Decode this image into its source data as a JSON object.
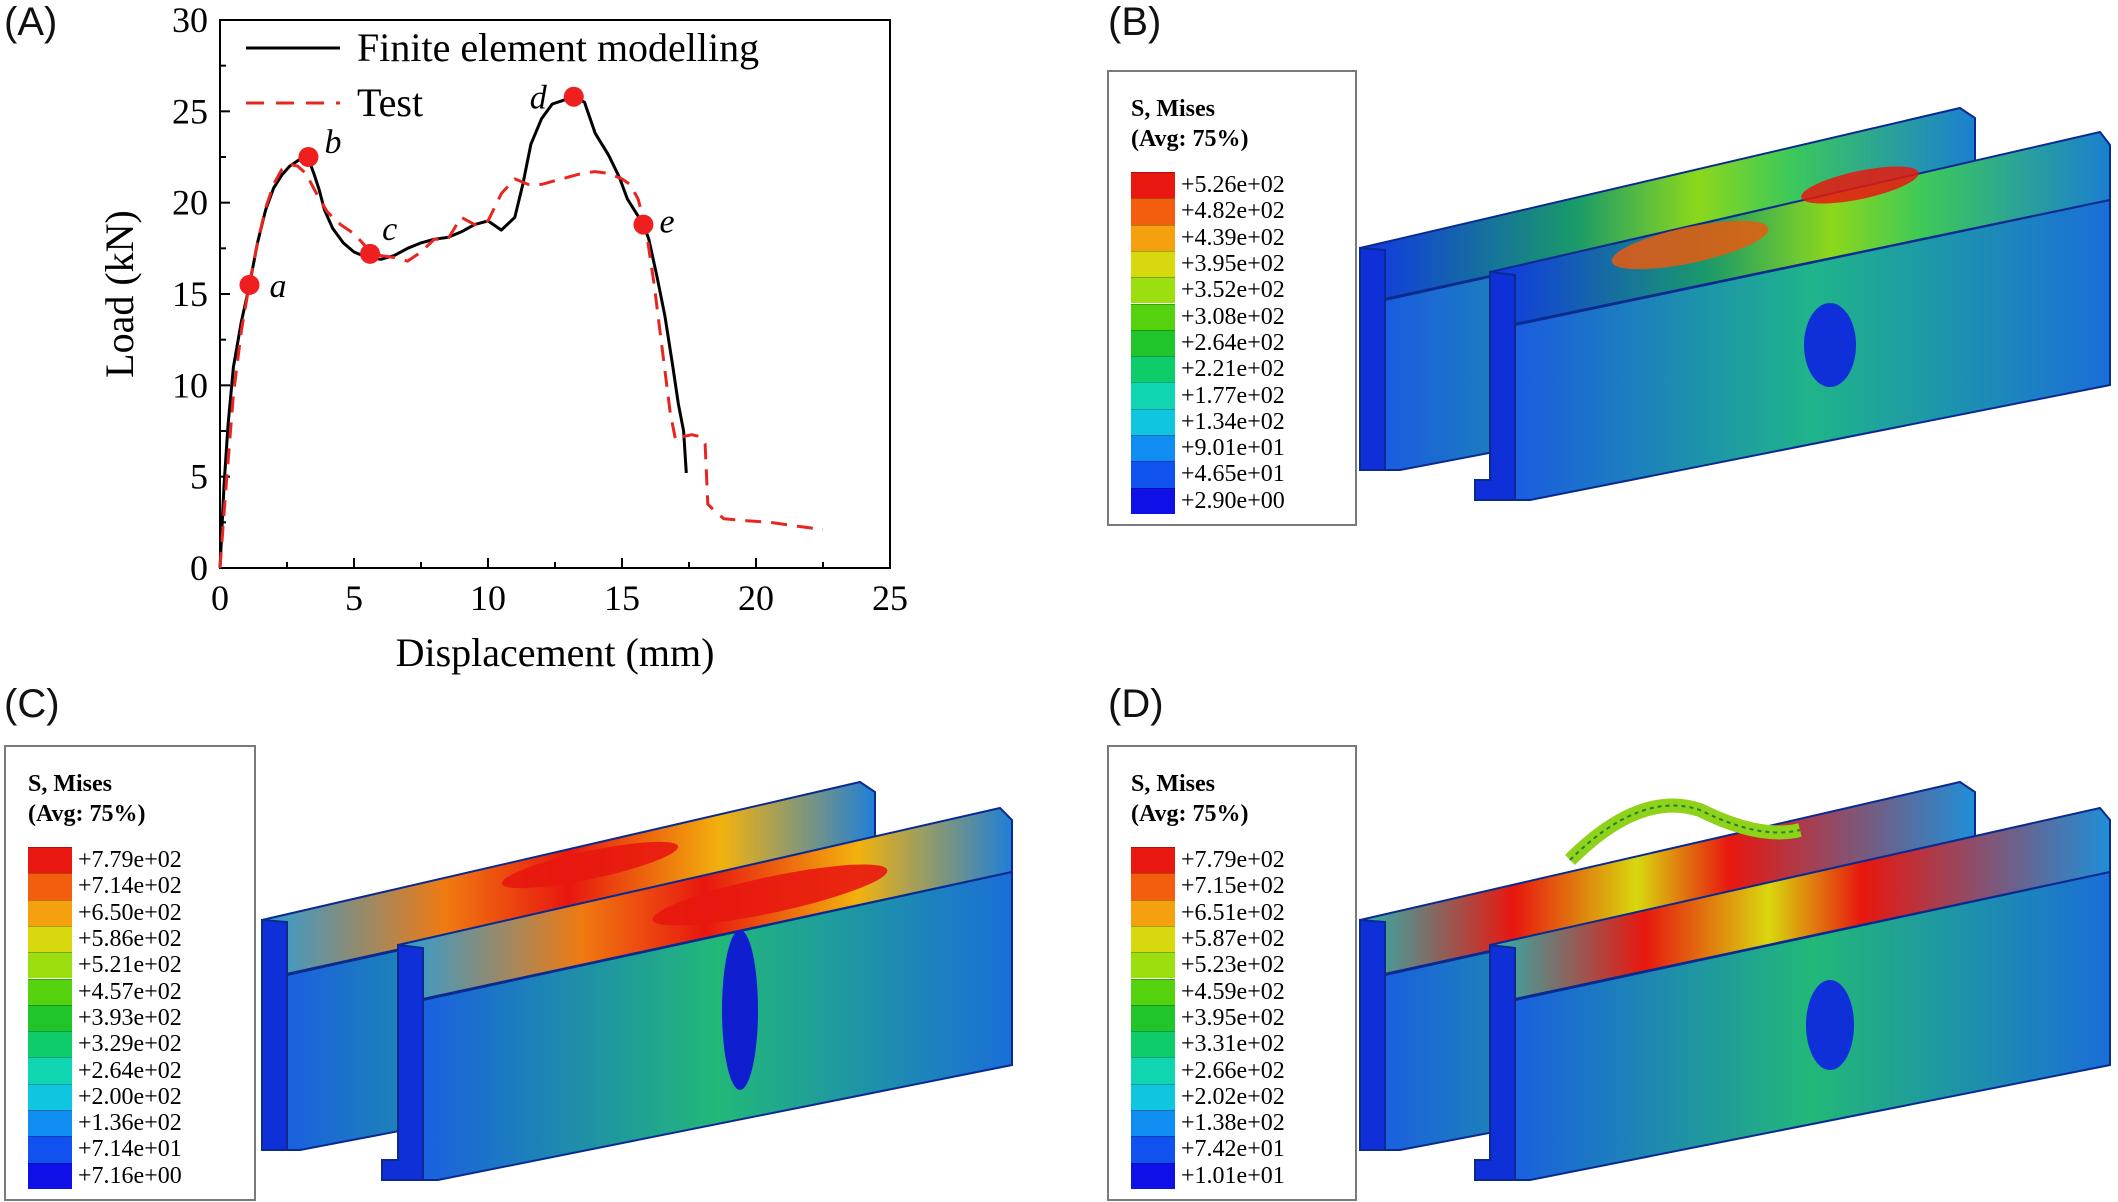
{
  "panels": {
    "a": "(A)",
    "b": "(B)",
    "c": "(C)",
    "d": "(D)"
  },
  "chart_data": {
    "type": "line",
    "title": "",
    "xlabel": "Displacement (mm)",
    "ylabel": "Load (kN)",
    "xlim": [
      0,
      25
    ],
    "ylim": [
      0,
      30
    ],
    "xticks": [
      0,
      5,
      10,
      15,
      20,
      25
    ],
    "yticks": [
      0,
      5,
      10,
      15,
      20,
      25,
      30
    ],
    "legend_position": "top",
    "series": [
      {
        "name": "Finite element modelling",
        "style": "solid",
        "color": "#000000",
        "x": [
          0,
          0.15,
          0.3,
          0.5,
          0.8,
          1.1,
          1.4,
          1.7,
          2.0,
          2.3,
          2.6,
          2.9,
          3.1,
          3.3,
          3.5,
          3.7,
          3.9,
          4.2,
          4.6,
          5.0,
          5.5,
          6.0,
          6.5,
          7.0,
          7.5,
          8.0,
          8.5,
          9.0,
          9.5,
          10.0,
          10.5,
          11.0,
          11.3,
          11.6,
          12.0,
          12.4,
          12.8,
          13.2,
          13.6,
          14.0,
          14.5,
          14.9,
          15.2,
          15.5,
          15.8,
          16.0,
          16.3,
          16.6,
          16.9,
          17.1,
          17.3,
          17.4
        ],
        "y": [
          0,
          4.5,
          7.8,
          11.0,
          13.5,
          15.5,
          17.8,
          19.6,
          20.8,
          21.5,
          22.0,
          22.3,
          22.5,
          22.4,
          21.6,
          20.7,
          19.6,
          18.6,
          17.8,
          17.3,
          17.0,
          16.9,
          17.1,
          17.5,
          17.8,
          18.0,
          18.1,
          18.4,
          18.8,
          19.0,
          18.5,
          19.2,
          21.0,
          23.2,
          24.6,
          25.4,
          25.6,
          25.8,
          25.5,
          23.8,
          22.6,
          21.4,
          20.2,
          19.5,
          18.8,
          18.0,
          16.0,
          13.8,
          11.0,
          9.0,
          7.5,
          5.2
        ]
      },
      {
        "name": "Test",
        "style": "dashed",
        "color": "#e8251f",
        "x": [
          0,
          0.2,
          0.5,
          0.8,
          1.1,
          1.4,
          1.7,
          2.0,
          2.3,
          2.6,
          2.9,
          3.2,
          3.6,
          4.0,
          4.5,
          5.0,
          5.5,
          6.0,
          6.5,
          7.0,
          7.5,
          8.0,
          8.5,
          9.0,
          9.5,
          10.0,
          10.5,
          11.0,
          11.5,
          12.0,
          12.5,
          13.0,
          13.5,
          14.0,
          14.5,
          15.0,
          15.3,
          15.6,
          15.9,
          16.2,
          16.5,
          16.8,
          17.0,
          17.3,
          17.6,
          17.9,
          18.1,
          18.2,
          18.4,
          18.8,
          19.5,
          20.5,
          21.5,
          22.5
        ],
        "y": [
          0,
          4.0,
          9.5,
          13.0,
          15.6,
          17.8,
          19.7,
          21.0,
          21.8,
          22.1,
          22.0,
          21.6,
          20.5,
          19.5,
          18.8,
          18.3,
          17.5,
          17.1,
          17.0,
          16.8,
          17.3,
          18.0,
          18.0,
          19.2,
          18.8,
          19.0,
          20.5,
          21.3,
          21.0,
          21.0,
          21.2,
          21.4,
          21.6,
          21.7,
          21.6,
          21.3,
          21.0,
          20.2,
          18.5,
          15.5,
          12.0,
          8.5,
          7.0,
          7.2,
          7.3,
          7.2,
          6.8,
          3.5,
          3.2,
          2.7,
          2.6,
          2.5,
          2.3,
          2.1
        ]
      }
    ],
    "annotations": [
      {
        "label": "a",
        "x": 1.1,
        "y": 15.5
      },
      {
        "label": "b",
        "x": 3.3,
        "y": 22.5
      },
      {
        "label": "c",
        "x": 5.6,
        "y": 17.2
      },
      {
        "label": "d",
        "x": 13.2,
        "y": 25.8
      },
      {
        "label": "e",
        "x": 15.8,
        "y": 18.8
      }
    ]
  },
  "contours": [
    {
      "title_line1": "S, Mises",
      "title_line2": "(Avg: 75%)",
      "values": [
        "+5.26e+02",
        "+4.82e+02",
        "+4.39e+02",
        "+3.95e+02",
        "+3.52e+02",
        "+3.08e+02",
        "+2.64e+02",
        "+2.21e+02",
        "+1.77e+02",
        "+1.34e+02",
        "+9.01e+01",
        "+4.65e+01",
        "+2.90e+00"
      ]
    },
    {
      "title_line1": "S, Mises",
      "title_line2": "(Avg: 75%)",
      "values": [
        "+7.79e+02",
        "+7.14e+02",
        "+6.50e+02",
        "+5.86e+02",
        "+5.21e+02",
        "+4.57e+02",
        "+3.93e+02",
        "+3.29e+02",
        "+2.64e+02",
        "+2.00e+02",
        "+1.36e+02",
        "+7.14e+01",
        "+7.16e+00"
      ]
    },
    {
      "title_line1": "S, Mises",
      "title_line2": "(Avg: 75%)",
      "values": [
        "+7.79e+02",
        "+7.15e+02",
        "+6.51e+02",
        "+5.87e+02",
        "+5.23e+02",
        "+4.59e+02",
        "+3.95e+02",
        "+3.31e+02",
        "+2.66e+02",
        "+2.02e+02",
        "+1.38e+02",
        "+7.42e+01",
        "+1.01e+01"
      ]
    }
  ],
  "colors": {
    "scale": [
      "#e8170f",
      "#f25e0e",
      "#f5a00e",
      "#d8d80e",
      "#9be00e",
      "#55d20e",
      "#20c52a",
      "#0fcc6a",
      "#0fd6b0",
      "#0fc6e0",
      "#0f8df0",
      "#0f52f0",
      "#0f0fe8"
    ],
    "dot": "#ef1f1f"
  }
}
